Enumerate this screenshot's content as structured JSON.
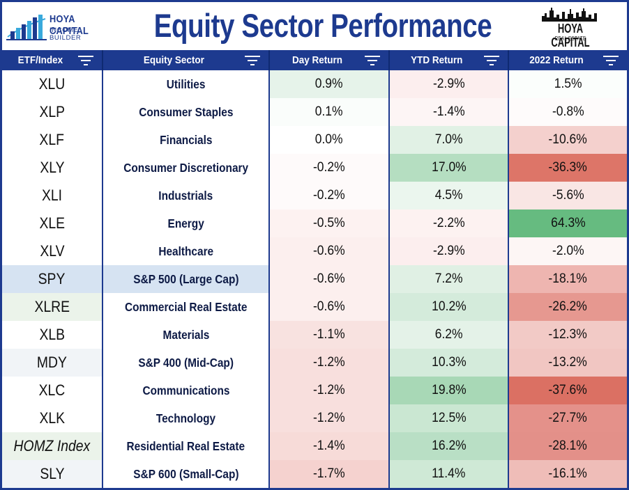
{
  "header": {
    "left_logo": {
      "line1": "HOYA CAPITAL",
      "line2": "INCOME BUILDER"
    },
    "title": "Equity Sector Performance",
    "right_logo": {
      "line1": "HOYA CAPITAL",
      "line2": "REAL ESTATE"
    }
  },
  "colors": {
    "brand_blue": "#1d3a8f",
    "positive_green": "#66bb80",
    "negative_red": "#d9695e"
  },
  "table": {
    "columns": [
      {
        "label": "ETF/Index",
        "icon": "filter-icon"
      },
      {
        "label": "Equity Sector",
        "icon": "filter-icon"
      },
      {
        "label": "Day Return",
        "icon": "filter-icon"
      },
      {
        "label": "YTD Return",
        "icon": "filter-icon"
      },
      {
        "label": "2022 Return",
        "icon": "filter-icon"
      }
    ],
    "rows": [
      {
        "etf": "XLU",
        "sector": "Utilities",
        "day": "0.9%",
        "ytd": "-2.9%",
        "y2022": "1.5%",
        "etf_bg": "#ffffff",
        "day_bg": "#e6f3ea",
        "ytd_bg": "#fceeee",
        "y2022_bg": "#fbfefc"
      },
      {
        "etf": "XLP",
        "sector": "Consumer Staples",
        "day": "0.1%",
        "ytd": "-1.4%",
        "y2022": "-0.8%",
        "etf_bg": "#ffffff",
        "day_bg": "#fafdfb",
        "ytd_bg": "#fdf5f5",
        "y2022_bg": "#fefbfb"
      },
      {
        "etf": "XLF",
        "sector": "Financials",
        "day": "0.0%",
        "ytd": "7.0%",
        "y2022": "-10.6%",
        "etf_bg": "#ffffff",
        "day_bg": "#ffffff",
        "ytd_bg": "#e1f1e5",
        "y2022_bg": "#f4d0cd"
      },
      {
        "etf": "XLY",
        "sector": "Consumer Discretionary",
        "day": "-0.2%",
        "ytd": "17.0%",
        "y2022": "-36.3%",
        "etf_bg": "#ffffff",
        "day_bg": "#fefafa",
        "ytd_bg": "#b5dec1",
        "y2022_bg": "#dd7568"
      },
      {
        "etf": "XLI",
        "sector": "Industrials",
        "day": "-0.2%",
        "ytd": "4.5%",
        "y2022": "-5.6%",
        "etf_bg": "#ffffff",
        "day_bg": "#fefafa",
        "ytd_bg": "#ebf6ee",
        "y2022_bg": "#f9e6e4"
      },
      {
        "etf": "XLE",
        "sector": "Energy",
        "day": "-0.5%",
        "ytd": "-2.2%",
        "y2022": "64.3%",
        "etf_bg": "#ffffff",
        "day_bg": "#fdf2f1",
        "ytd_bg": "#fdf2f1",
        "y2022_bg": "#66bb80"
      },
      {
        "etf": "XLV",
        "sector": "Healthcare",
        "day": "-0.6%",
        "ytd": "-2.9%",
        "y2022": "-2.0%",
        "etf_bg": "#ffffff",
        "day_bg": "#fcefee",
        "ytd_bg": "#fceeee",
        "y2022_bg": "#fdf6f5"
      },
      {
        "etf": "SPY",
        "sector": "S&P 500 (Large Cap)",
        "day": "-0.6%",
        "ytd": "7.2%",
        "y2022": "-18.1%",
        "etf_bg": "#d6e3f2",
        "sector_bg": "#d6e3f2",
        "day_bg": "#fcefee",
        "ytd_bg": "#e0f0e4",
        "y2022_bg": "#eeb5b0"
      },
      {
        "etf": "XLRE",
        "sector": "Commercial Real Estate",
        "day": "-0.6%",
        "ytd": "10.2%",
        "y2022": "-26.2%",
        "etf_bg": "#ebf3ea",
        "day_bg": "#fcefee",
        "ytd_bg": "#d4ebdb",
        "y2022_bg": "#e69890"
      },
      {
        "etf": "XLB",
        "sector": "Materials",
        "day": "-1.1%",
        "ytd": "6.2%",
        "y2022": "-12.3%",
        "etf_bg": "#ffffff",
        "day_bg": "#f8e2e0",
        "ytd_bg": "#e4f2e8",
        "y2022_bg": "#f2cac6"
      },
      {
        "etf": "MDY",
        "sector": "S&P 400 (Mid-Cap)",
        "day": "-1.2%",
        "ytd": "10.3%",
        "y2022": "-13.2%",
        "etf_bg": "#f1f4f7",
        "day_bg": "#f8dfdd",
        "ytd_bg": "#d4ebdb",
        "y2022_bg": "#f1c6c2"
      },
      {
        "etf": "XLC",
        "sector": "Communications",
        "day": "-1.2%",
        "ytd": "19.8%",
        "y2022": "-37.6%",
        "etf_bg": "#ffffff",
        "day_bg": "#f8dfdd",
        "ytd_bg": "#a8d8b6",
        "y2022_bg": "#db7063"
      },
      {
        "etf": "XLK",
        "sector": "Technology",
        "day": "-1.2%",
        "ytd": "12.5%",
        "y2022": "-27.7%",
        "etf_bg": "#ffffff",
        "day_bg": "#f8dfdd",
        "ytd_bg": "#cae7d2",
        "y2022_bg": "#e4918a"
      },
      {
        "etf": "HOMZ Index",
        "sector": "Residential Real Estate",
        "day": "-1.4%",
        "ytd": "16.2%",
        "y2022": "-28.1%",
        "etf_bg": "#ebf3ea",
        "day_bg": "#f7dbd8",
        "ytd_bg": "#b9dfc5",
        "y2022_bg": "#e39089",
        "italic": true
      },
      {
        "etf": "SLY",
        "sector": "S&P 600 (Small-Cap)",
        "day": "-1.7%",
        "ytd": "11.4%",
        "y2022": "-16.1%",
        "etf_bg": "#f1f4f7",
        "day_bg": "#f5d2cf",
        "ytd_bg": "#cfe9d6",
        "y2022_bg": "#efbdb8"
      }
    ]
  }
}
